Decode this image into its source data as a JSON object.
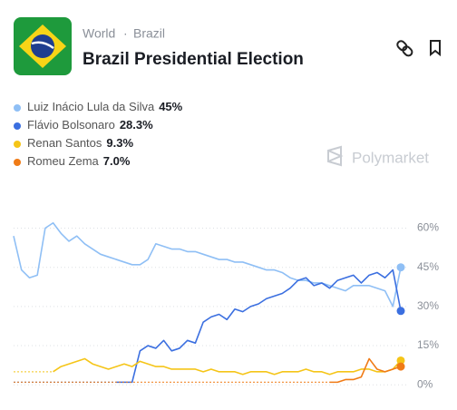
{
  "header": {
    "breadcrumb": [
      "World",
      "Brazil"
    ],
    "separator": "·",
    "title": "Brazil Presidential Election",
    "brand": "Polymarket"
  },
  "chart_data": {
    "type": "line",
    "series": [
      {
        "name": "Luiz Inácio Lula da Silva",
        "color": "#8fbff5",
        "current": {
          "value": 45,
          "label": "45%"
        },
        "values": [
          57,
          44,
          41,
          42,
          60,
          62,
          58,
          55,
          57,
          54,
          52,
          50,
          49,
          48,
          47,
          46,
          46,
          48,
          54,
          53,
          52,
          52,
          51,
          51,
          50,
          49,
          48,
          48,
          47,
          47,
          46,
          45,
          44,
          44,
          43,
          41,
          40,
          40,
          39,
          39,
          38,
          37,
          36,
          38,
          38,
          38,
          37,
          36,
          30,
          45
        ]
      },
      {
        "name": "Flávio Bolsonaro",
        "color": "#3b6fe0",
        "current": {
          "value": 28.3,
          "label": "28.3%"
        },
        "values": [
          null,
          null,
          null,
          null,
          null,
          null,
          null,
          null,
          null,
          null,
          null,
          null,
          null,
          1,
          1,
          1,
          13,
          15,
          14,
          17,
          13,
          14,
          17,
          16,
          24,
          26,
          27,
          25,
          29,
          28,
          30,
          31,
          33,
          34,
          35,
          37,
          40,
          41,
          38,
          39,
          37,
          40,
          41,
          42,
          39,
          42,
          43,
          41,
          44,
          28.3
        ]
      },
      {
        "name": "Renan Santos",
        "color": "#f5c518",
        "current": {
          "value": 9.3,
          "label": "9.3%"
        },
        "values": [
          null,
          null,
          null,
          null,
          null,
          5,
          7,
          8,
          9,
          10,
          8,
          7,
          6,
          7,
          8,
          7,
          9,
          8,
          7,
          7,
          6,
          6,
          6,
          6,
          5,
          6,
          5,
          5,
          5,
          4,
          5,
          5,
          5,
          4,
          5,
          5,
          5,
          6,
          5,
          5,
          4,
          5,
          5,
          5,
          6,
          6,
          5,
          5,
          6,
          9.3
        ]
      },
      {
        "name": "Romeu Zema",
        "color": "#f07b16",
        "current": {
          "value": 7.0,
          "label": "7.0%"
        },
        "values": [
          null,
          null,
          null,
          null,
          null,
          null,
          null,
          null,
          null,
          null,
          null,
          null,
          null,
          null,
          null,
          null,
          null,
          null,
          null,
          null,
          null,
          null,
          null,
          null,
          null,
          null,
          null,
          null,
          null,
          null,
          null,
          null,
          null,
          null,
          null,
          null,
          null,
          null,
          null,
          null,
          1,
          1,
          2,
          2,
          3,
          10,
          6,
          5,
          6,
          7.0
        ]
      }
    ],
    "ylim": [
      -2,
      64
    ],
    "yticks": [
      {
        "value": 0,
        "label": "0%"
      },
      {
        "value": 15,
        "label": "15%"
      },
      {
        "value": 30,
        "label": "30%"
      },
      {
        "value": 45,
        "label": "45%"
      },
      {
        "value": 60,
        "label": "60%"
      }
    ],
    "grid": true
  }
}
